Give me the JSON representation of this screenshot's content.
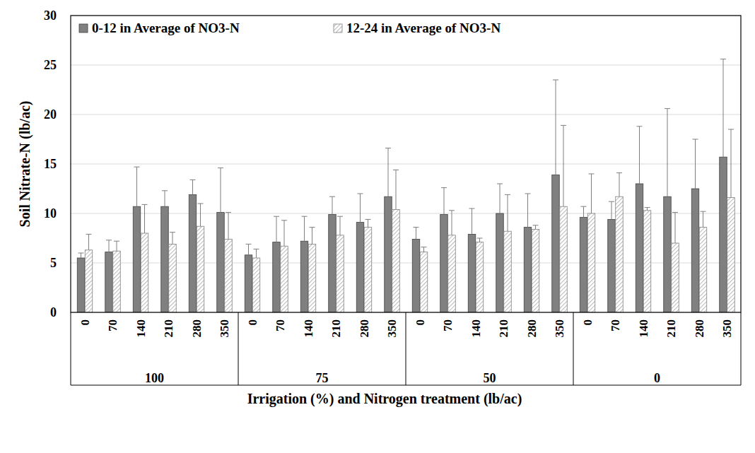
{
  "chart_data": {
    "type": "bar",
    "y_label": "Soil Nitrate-N (lb/ac)",
    "x_label": "Irrigation (%) and Nitrogen treatment (lb/ac)",
    "categories": [
      "0",
      "70",
      "140",
      "210",
      "280",
      "350",
      "0",
      "70",
      "140",
      "210",
      "280",
      "350",
      "0",
      "70",
      "140",
      "210",
      "280",
      "350",
      "0",
      "70",
      "140",
      "210",
      "280",
      "350"
    ],
    "group_labels": [
      "100",
      "75",
      "50",
      "0"
    ],
    "series": [
      {
        "name": "0-12 in Average of NO3-N",
        "color": "#808080",
        "values": [
          5.5,
          6.1,
          10.7,
          10.7,
          11.9,
          10.1,
          5.8,
          7.1,
          7.2,
          9.9,
          9.1,
          11.7,
          7.4,
          9.9,
          7.9,
          10.0,
          8.6,
          13.9,
          9.6,
          9.4,
          13.0,
          11.7,
          12.5,
          15.7
        ],
        "errors": [
          0.5,
          1.2,
          4.0,
          1.6,
          1.5,
          4.5,
          1.1,
          2.6,
          2.5,
          1.8,
          2.9,
          4.9,
          1.2,
          2.7,
          2.6,
          3.0,
          3.4,
          9.6,
          1.1,
          1.8,
          5.8,
          8.9,
          5.0,
          9.9
        ]
      },
      {
        "name": "12-24 in Average of NO3-N",
        "color": "#a6a6a6",
        "values": [
          6.3,
          6.2,
          8.0,
          6.9,
          8.7,
          7.4,
          5.5,
          6.7,
          6.9,
          7.8,
          8.6,
          10.4,
          6.1,
          7.8,
          7.1,
          8.2,
          8.4,
          10.7,
          10.0,
          11.7,
          10.3,
          7.0,
          8.6,
          11.6
        ],
        "errors": [
          1.6,
          1.0,
          2.9,
          1.2,
          2.3,
          2.7,
          0.9,
          2.6,
          1.7,
          1.9,
          0.8,
          4.0,
          0.5,
          2.5,
          0.4,
          3.7,
          0.4,
          8.2,
          4.0,
          2.4,
          0.3,
          3.1,
          1.6,
          6.9
        ]
      }
    ],
    "ylim": [
      0,
      30
    ],
    "yticks": [
      0,
      5,
      10,
      15,
      20,
      25,
      30
    ],
    "grid": true,
    "legend": "top-left"
  }
}
